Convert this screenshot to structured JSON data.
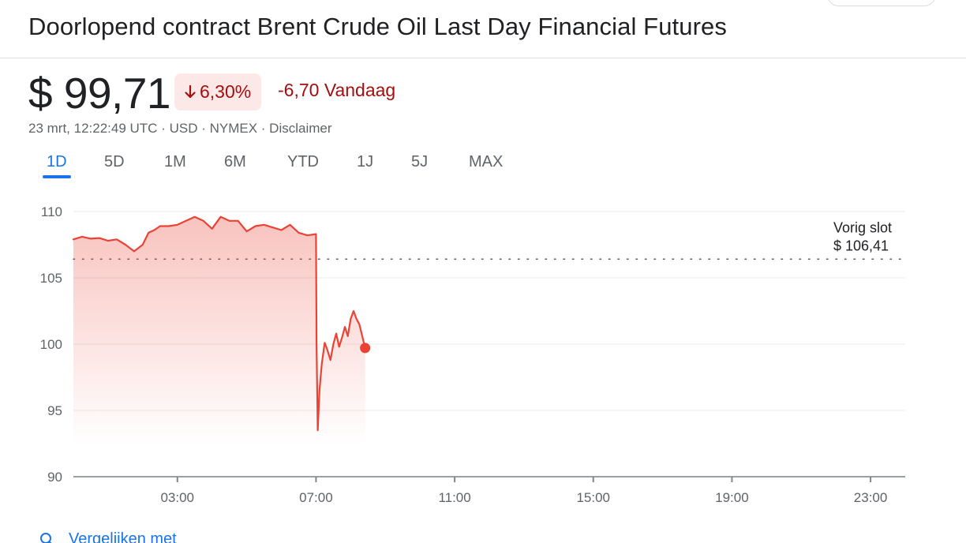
{
  "title": "Doorlopend contract Brent Crude Oil Last Day Financial Futures",
  "price": "$ 99,71",
  "change": {
    "percent": "6,30%",
    "direction": "down",
    "today": "-6,70 Vandaag"
  },
  "meta": {
    "timestamp": "23 mrt, 12:22:49 UTC",
    "currency": "USD",
    "exchange": "NYMEX",
    "disclaimer": "Disclaimer",
    "separator": " · "
  },
  "tabs": [
    "1D",
    "5D",
    "1M",
    "6M",
    "YTD",
    "1J",
    "5J",
    "MAX"
  ],
  "active_tab": "1D",
  "compare_label": "Vergelijken met",
  "colors": {
    "negative": "#a50e0e",
    "line": "#ea4335",
    "accent": "#1a73e8",
    "text": "#202124",
    "muted": "#5f6368"
  },
  "chart_data": {
    "type": "area",
    "ylim": [
      90,
      110
    ],
    "y_ticks": [
      110,
      105,
      100,
      95,
      90
    ],
    "y_tick_labels": [
      "110",
      "105",
      "100",
      "95",
      "90"
    ],
    "xlim_hours": [
      0,
      24
    ],
    "x_ticks_hours": [
      3,
      7,
      11,
      15,
      19,
      23
    ],
    "x_tick_labels": [
      "03:00",
      "07:00",
      "11:00",
      "15:00",
      "19:00",
      "23:00"
    ],
    "previous_close": 106.41,
    "previous_close_label": "Vorig slot",
    "previous_close_value": "$ 106,41",
    "series": [
      {
        "x": [
          "00:00",
          "00:15",
          "00:30",
          "00:45",
          "01:00",
          "01:15",
          "01:30",
          "01:45",
          "02:00",
          "02:10",
          "02:20",
          "02:30",
          "02:45",
          "03:00",
          "03:15",
          "03:30",
          "03:45",
          "04:00",
          "04:15",
          "04:30",
          "04:45",
          "05:00",
          "05:15",
          "05:30",
          "05:45",
          "06:00",
          "06:15",
          "06:30",
          "06:45",
          "07:00",
          "07:01",
          "07:03",
          "07:06",
          "07:10",
          "07:15",
          "07:20",
          "07:25",
          "07:30",
          "07:35",
          "07:40",
          "07:45",
          "07:50",
          "07:55",
          "08:00",
          "08:05",
          "08:10",
          "08:15",
          "08:20",
          "08:25"
        ],
        "y": [
          107.9,
          108.1,
          107.95,
          108.0,
          107.8,
          107.9,
          107.5,
          107.0,
          107.5,
          108.4,
          108.6,
          108.9,
          108.9,
          109.0,
          109.3,
          109.6,
          109.3,
          108.7,
          109.6,
          109.3,
          109.3,
          108.5,
          108.9,
          109.0,
          108.8,
          108.6,
          109.0,
          108.4,
          108.2,
          108.3,
          100.0,
          93.5,
          96.5,
          98.5,
          100.1,
          99.5,
          98.8,
          100.0,
          100.8,
          99.8,
          100.5,
          101.3,
          100.6,
          101.9,
          102.5,
          101.9,
          101.5,
          100.6,
          99.71
        ]
      }
    ],
    "grid": true,
    "legend": "none"
  }
}
